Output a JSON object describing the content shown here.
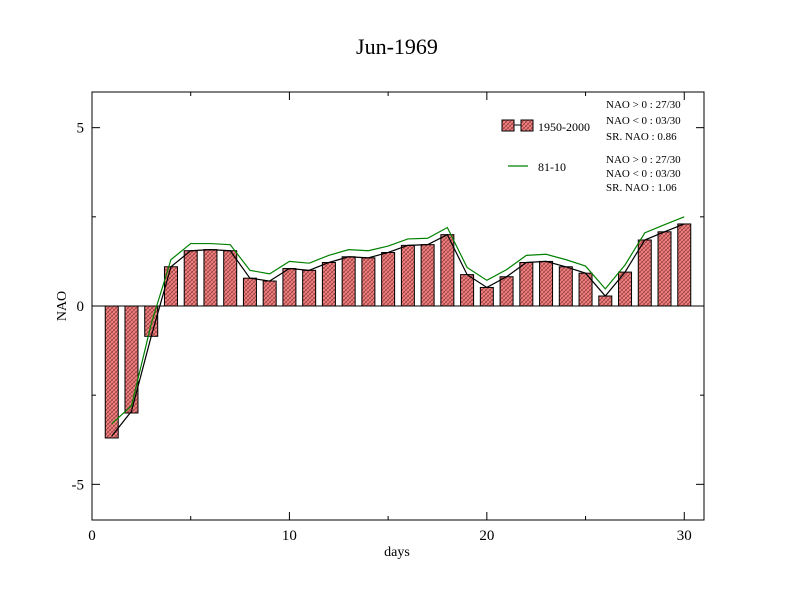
{
  "chart_data": {
    "type": "bar",
    "title": "Jun-1969",
    "xlabel": "days",
    "ylabel": "NAO",
    "xlim": [
      0,
      31
    ],
    "ylim": [
      -6,
      6
    ],
    "xticks": [
      0,
      10,
      20,
      30
    ],
    "xtick_labels": [
      "0",
      "10",
      "20",
      "30"
    ],
    "yticks": [
      -5,
      0,
      5
    ],
    "ytick_labels": [
      "-5",
      "0",
      "5"
    ],
    "x": [
      1,
      2,
      3,
      4,
      5,
      6,
      7,
      8,
      9,
      10,
      11,
      12,
      13,
      14,
      15,
      16,
      17,
      18,
      19,
      20,
      21,
      22,
      23,
      24,
      25,
      26,
      27,
      28,
      29,
      30
    ],
    "series": [
      {
        "name": "1950-2000",
        "kind": "bar",
        "color": "#e07070",
        "values": [
          -3.7,
          -3.0,
          -0.85,
          1.1,
          1.55,
          1.58,
          1.55,
          0.78,
          0.7,
          1.05,
          1.0,
          1.22,
          1.38,
          1.35,
          1.5,
          1.7,
          1.72,
          2.0,
          0.88,
          0.52,
          0.82,
          1.22,
          1.25,
          1.1,
          0.92,
          0.28,
          0.95,
          1.85,
          2.08,
          2.3
        ]
      },
      {
        "name": "",
        "kind": "line",
        "color": "#000000",
        "values": [
          -3.65,
          -2.95,
          -0.85,
          1.1,
          1.55,
          1.58,
          1.55,
          0.78,
          0.7,
          1.05,
          1.0,
          1.22,
          1.38,
          1.35,
          1.5,
          1.7,
          1.72,
          2.0,
          0.88,
          0.52,
          0.82,
          1.22,
          1.25,
          1.1,
          0.92,
          0.28,
          0.95,
          1.85,
          2.08,
          2.3
        ]
      },
      {
        "name": "81-10",
        "kind": "line",
        "color": "#008000",
        "values": [
          -3.3,
          -2.8,
          -0.5,
          1.3,
          1.75,
          1.75,
          1.72,
          1.0,
          0.9,
          1.25,
          1.2,
          1.42,
          1.58,
          1.55,
          1.68,
          1.88,
          1.9,
          2.2,
          1.08,
          0.72,
          1.02,
          1.42,
          1.45,
          1.3,
          1.12,
          0.48,
          1.15,
          2.05,
          2.28,
          2.5
        ]
      }
    ],
    "legend": {
      "placement": "top-right",
      "entries": [
        {
          "label": "1950-2000",
          "stats": [
            "NAO > 0 : 27/30",
            "NAO < 0 : 03/30",
            "SR. NAO :  0.86"
          ]
        },
        {
          "label": "81-10",
          "stats": [
            "NAO > 0 : 27/30",
            "NAO < 0 : 03/30",
            "SR. NAO :  1.06"
          ]
        }
      ]
    },
    "grid": false
  }
}
